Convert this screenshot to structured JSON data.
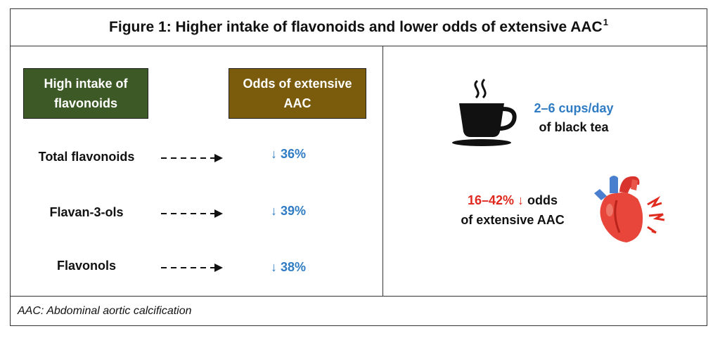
{
  "title": {
    "text": "Figure 1: Higher intake of flavonoids and lower odds of extensive AAC",
    "superscript": "1"
  },
  "headers": {
    "intake": "High intake of flavonoids",
    "odds": "Odds of extensive AAC"
  },
  "rows": [
    {
      "label": "Total flavonoids",
      "change": "↓ 36%"
    },
    {
      "label": "Flavan-3-ols",
      "change": "↓ 39%"
    },
    {
      "label": "Flavonols",
      "change": "↓ 38%"
    }
  ],
  "tea": {
    "amount": "2–6 cups/day",
    "type": "of black tea"
  },
  "aac_effect": {
    "range": "16–42% ↓",
    "line1_rest": "odds",
    "line2": "of extensive AAC"
  },
  "footer": "AAC: Abdominal aortic calcification",
  "icons": [
    "coffee-cup-icon",
    "heart-icon"
  ],
  "colors": {
    "intake_header": "#3d5a26",
    "odds_header": "#7a5c0c",
    "blue": "#2f7cc4",
    "red": "#e0281e"
  }
}
